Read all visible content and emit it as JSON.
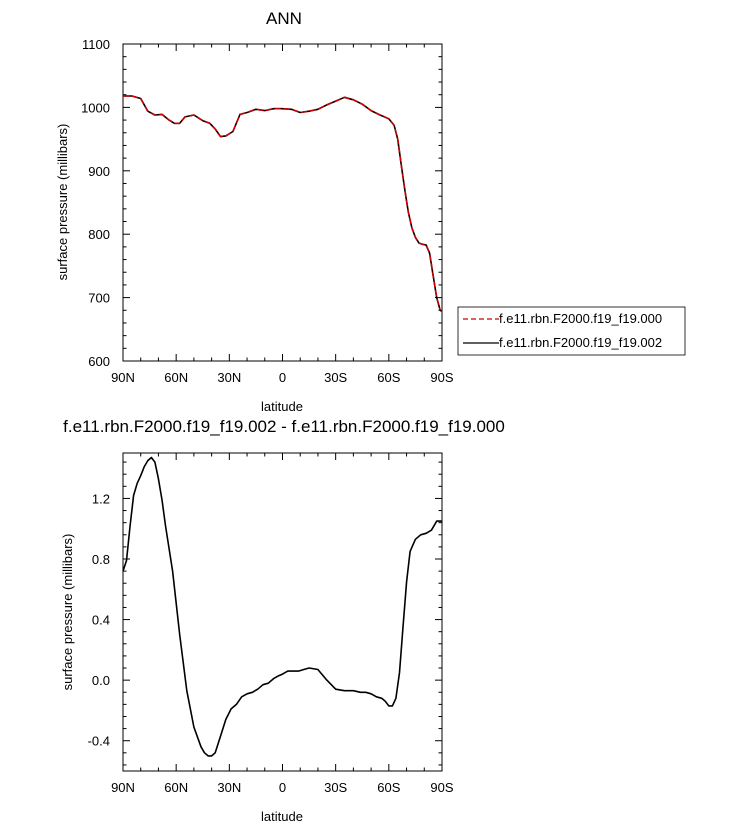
{
  "chart_data": [
    {
      "type": "line",
      "title": "ANN",
      "xlabel": "latitude",
      "ylabel": "surface pressure (millibars)",
      "x_ticks": [
        {
          "value": 90,
          "label": "90N"
        },
        {
          "value": 60,
          "label": "60N"
        },
        {
          "value": 30,
          "label": "30N"
        },
        {
          "value": 0,
          "label": "0"
        },
        {
          "value": -30,
          "label": "30S"
        },
        {
          "value": -60,
          "label": "60S"
        },
        {
          "value": -90,
          "label": "90S"
        }
      ],
      "y_ticks": [
        {
          "value": 600,
          "label": "600"
        },
        {
          "value": 700,
          "label": "700"
        },
        {
          "value": 800,
          "label": "800"
        },
        {
          "value": 900,
          "label": "900"
        },
        {
          "value": 1000,
          "label": "1000"
        },
        {
          "value": 1100,
          "label": "1100"
        }
      ],
      "xlim": [
        90,
        -90
      ],
      "ylim": [
        600,
        1100
      ],
      "grid": false,
      "legend_position": "right",
      "x": [
        90,
        85,
        80,
        76,
        72,
        68,
        64,
        61,
        58,
        55,
        50,
        45,
        41,
        38,
        35,
        32,
        28,
        24,
        20,
        15,
        10,
        5,
        0,
        -5,
        -10,
        -15,
        -20,
        -25,
        -30,
        -35,
        -40,
        -45,
        -50,
        -55,
        -60,
        -63,
        -65,
        -67,
        -69,
        -71,
        -73,
        -75,
        -77,
        -79,
        -81,
        -83,
        -85,
        -87,
        -89,
        -90
      ],
      "series": [
        {
          "name": "f.e11.rbn.F2000.f19_f19.000",
          "color": "#cc0000",
          "dash": "dashed",
          "values": [
            1018,
            1018,
            1014,
            994,
            988,
            989,
            980,
            975,
            975,
            985,
            988,
            979,
            975,
            966,
            954,
            955,
            962,
            989,
            992,
            997,
            995,
            998,
            998,
            997,
            992,
            994,
            997,
            1004,
            1010,
            1016,
            1012,
            1005,
            995,
            988,
            982,
            972,
            950,
            910,
            870,
            835,
            810,
            795,
            786,
            784,
            783,
            770,
            735,
            700,
            680,
            678
          ]
        },
        {
          "name": "f.e11.rbn.F2000.f19_f19.002",
          "color": "#000000",
          "dash": "solid",
          "values": [
            1018,
            1018,
            1014,
            994,
            988,
            989,
            980,
            975,
            975,
            985,
            988,
            979,
            975,
            966,
            954,
            955,
            962,
            989,
            992,
            997,
            995,
            998,
            998,
            997,
            992,
            994,
            997,
            1004,
            1010,
            1016,
            1012,
            1005,
            995,
            988,
            982,
            972,
            950,
            910,
            870,
            835,
            810,
            795,
            786,
            784,
            783,
            770,
            735,
            700,
            680,
            678
          ]
        }
      ]
    },
    {
      "type": "line",
      "title": "f.e11.rbn.F2000.f19_f19.002 - f.e11.rbn.F2000.f19_f19.000",
      "xlabel": "latitude",
      "ylabel": "surface pressure (millibars)",
      "x_ticks": [
        {
          "value": 90,
          "label": "90N"
        },
        {
          "value": 60,
          "label": "60N"
        },
        {
          "value": 30,
          "label": "30N"
        },
        {
          "value": 0,
          "label": "0"
        },
        {
          "value": -30,
          "label": "30S"
        },
        {
          "value": -60,
          "label": "60S"
        },
        {
          "value": -90,
          "label": "90S"
        }
      ],
      "y_ticks": [
        {
          "value": -0.4,
          "label": "-0.4"
        },
        {
          "value": 0.0,
          "label": "0.0"
        },
        {
          "value": 0.4,
          "label": "0.4"
        },
        {
          "value": 0.8,
          "label": "0.8"
        },
        {
          "value": 1.2,
          "label": "1.2"
        }
      ],
      "xlim": [
        90,
        -90
      ],
      "ylim": [
        -0.6,
        1.5
      ],
      "grid": false,
      "x": [
        90,
        88,
        86,
        84,
        82,
        80,
        78,
        76,
        74,
        72,
        70,
        68,
        66,
        62,
        58,
        54,
        50,
        46,
        44,
        42,
        40,
        38,
        35,
        32,
        29,
        26,
        23,
        20,
        17,
        14,
        11,
        8,
        5,
        2,
        0,
        -3,
        -6,
        -9,
        -12,
        -15,
        -20,
        -25,
        -30,
        -35,
        -40,
        -44,
        -47,
        -50,
        -53,
        -56,
        -58,
        -60,
        -62,
        -64,
        -66,
        -68,
        -70,
        -72,
        -75,
        -78,
        -81,
        -84,
        -87,
        -90
      ],
      "values": [
        0.72,
        0.79,
        1.02,
        1.22,
        1.3,
        1.35,
        1.41,
        1.45,
        1.47,
        1.44,
        1.33,
        1.19,
        1.02,
        0.72,
        0.3,
        -0.07,
        -0.31,
        -0.44,
        -0.48,
        -0.5,
        -0.5,
        -0.48,
        -0.37,
        -0.26,
        -0.19,
        -0.16,
        -0.11,
        -0.09,
        -0.08,
        -0.06,
        -0.03,
        -0.02,
        0.01,
        0.03,
        0.04,
        0.06,
        0.06,
        0.06,
        0.07,
        0.08,
        0.07,
        0.0,
        -0.06,
        -0.07,
        -0.07,
        -0.08,
        -0.08,
        -0.09,
        -0.11,
        -0.12,
        -0.14,
        -0.17,
        -0.17,
        -0.12,
        0.05,
        0.35,
        0.65,
        0.85,
        0.93,
        0.96,
        0.97,
        0.99,
        1.05,
        1.05
      ]
    }
  ]
}
